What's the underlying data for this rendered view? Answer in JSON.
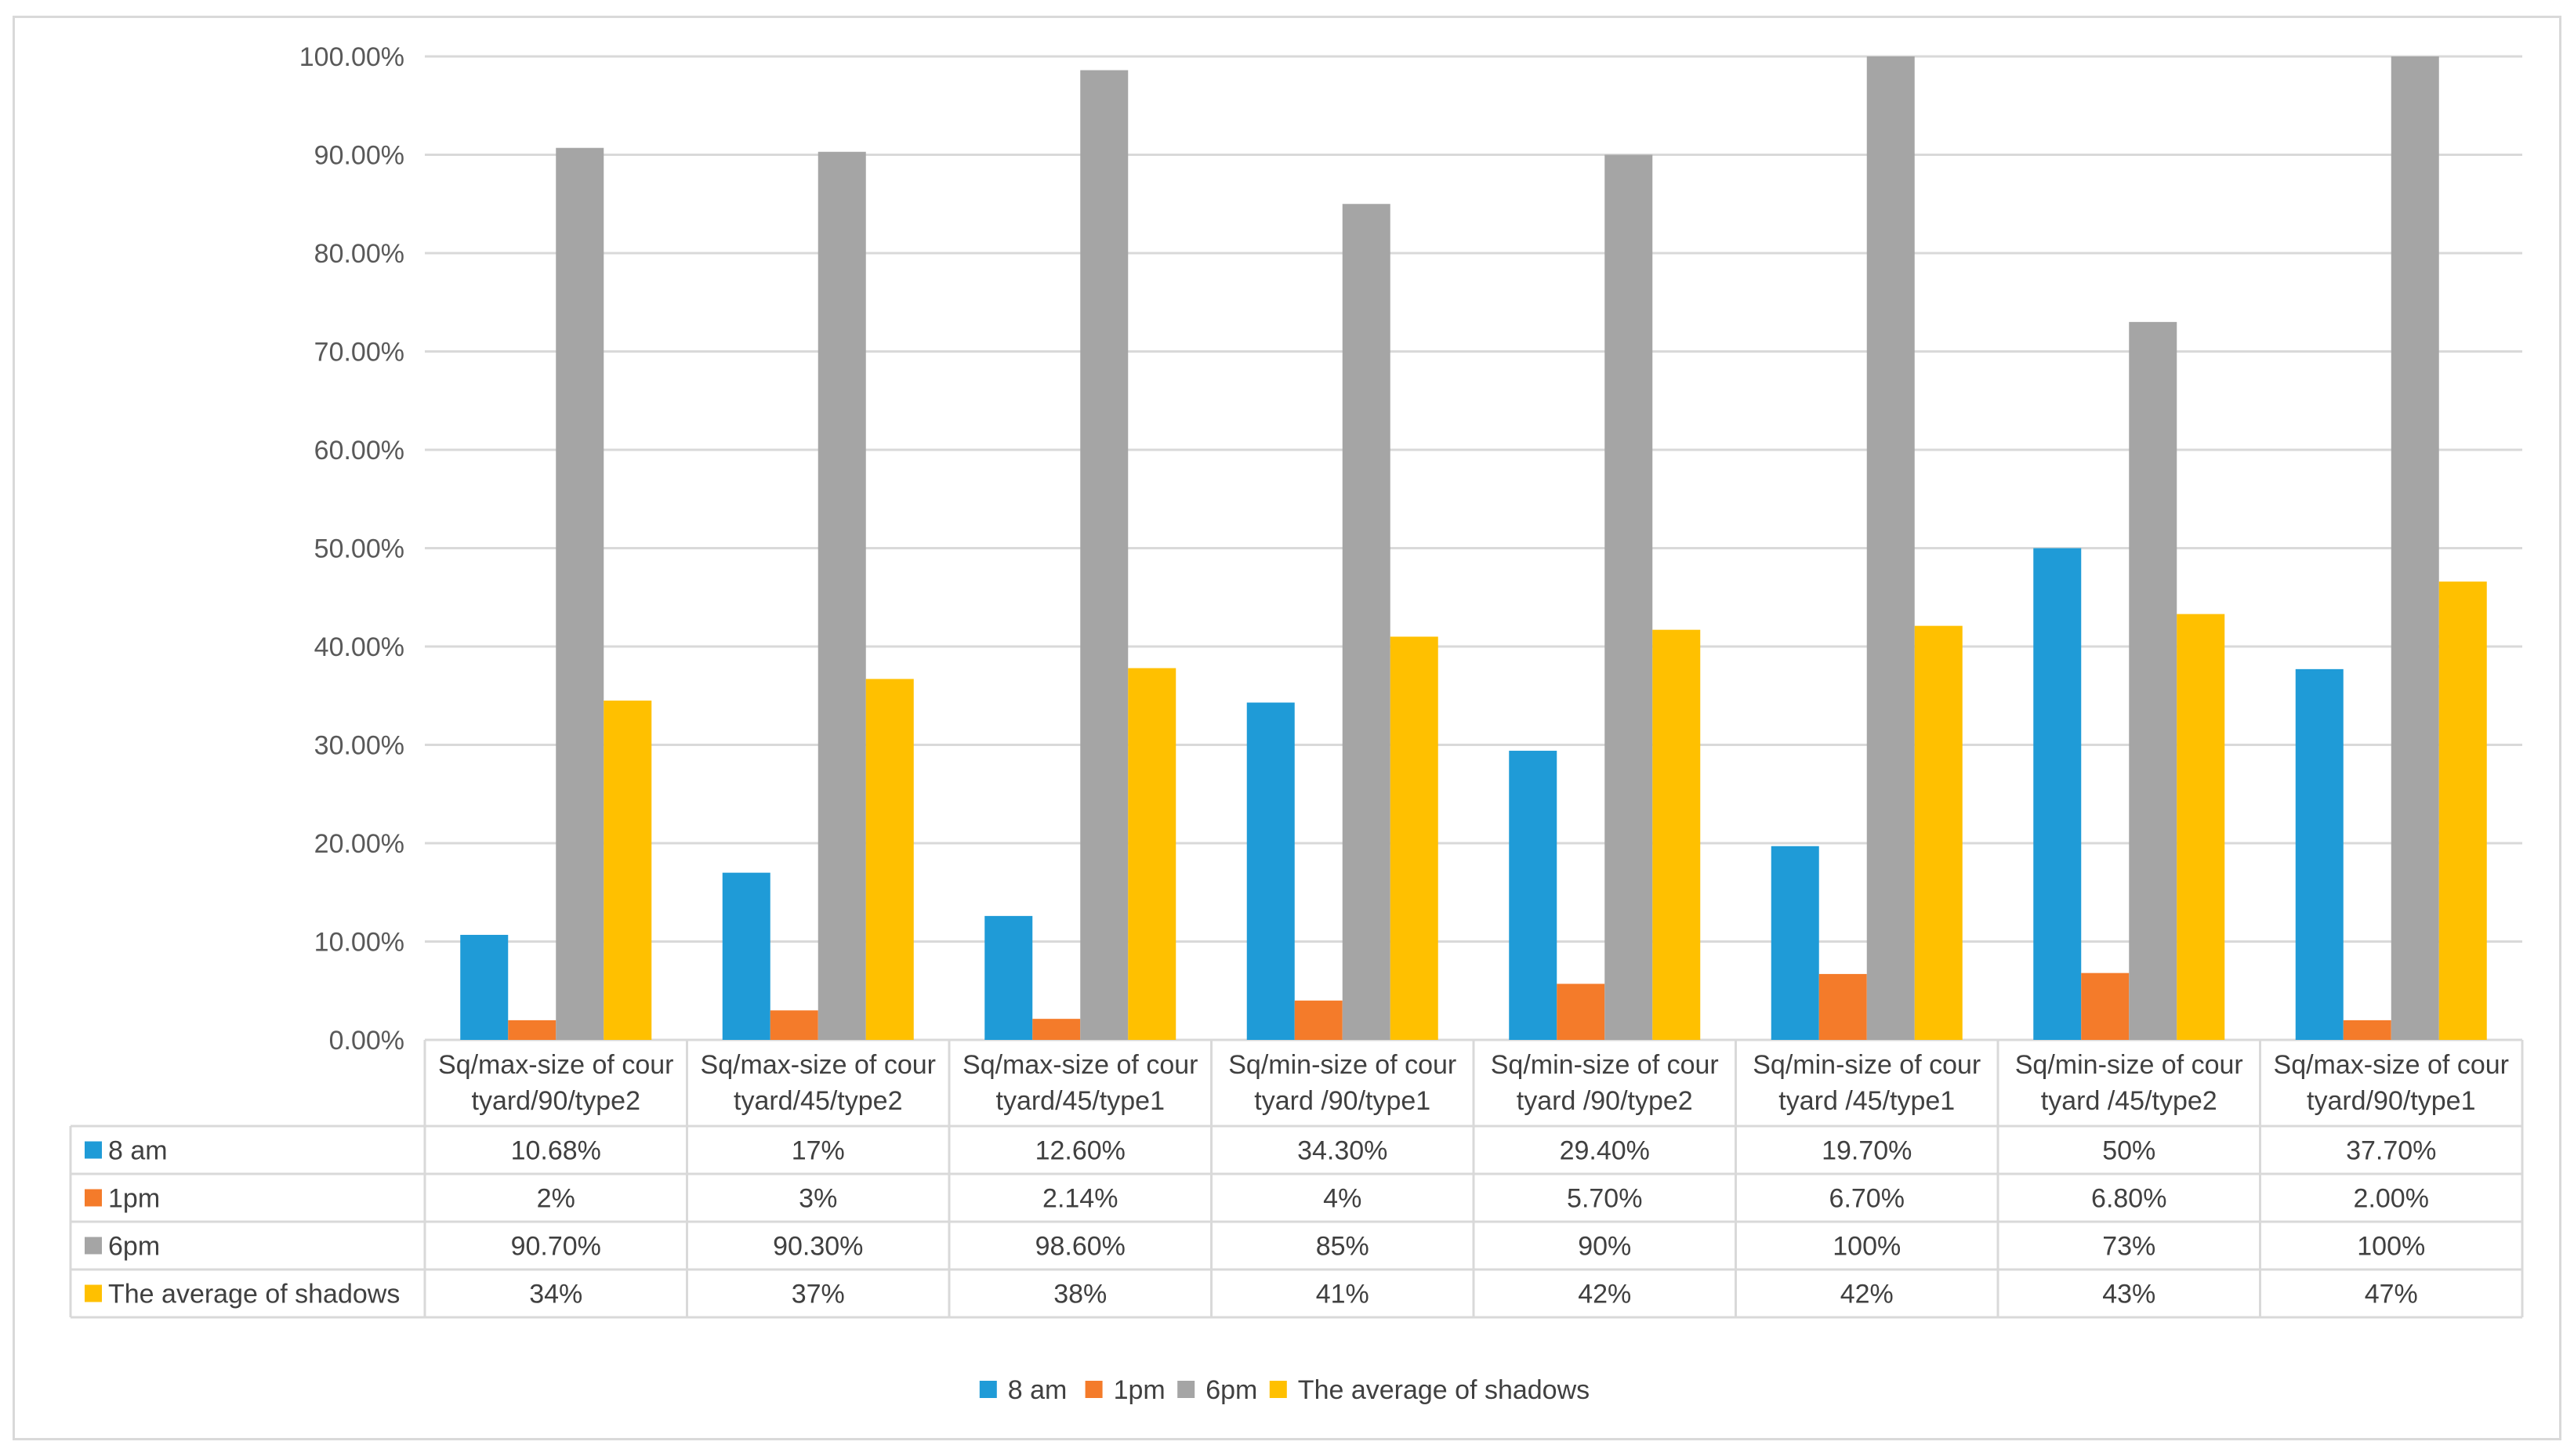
{
  "chart_data": {
    "type": "bar",
    "title": "",
    "xlabel": "",
    "ylabel": "",
    "ylim": [
      0,
      100
    ],
    "yticks": [
      "0.00%",
      "10.00%",
      "20.00%",
      "30.00%",
      "40.00%",
      "50.00%",
      "60.00%",
      "70.00%",
      "80.00%",
      "90.00%",
      "100.00%"
    ],
    "grid": true,
    "legend_position": "bottom-center",
    "categories": [
      [
        "Sq/max-size of cour",
        "tyard/90/type2"
      ],
      [
        "Sq/max-size of cour",
        "tyard/45/type2"
      ],
      [
        "Sq/max-size of cour",
        "tyard/45/type1"
      ],
      [
        "Sq/min-size of cour",
        "tyard /90/type1"
      ],
      [
        "Sq/min-size of cour",
        "tyard /90/type2"
      ],
      [
        "Sq/min-size of cour",
        "tyard /45/type1"
      ],
      [
        "Sq/min-size of cour",
        "tyard /45/type2"
      ],
      [
        "Sq/max-size of cour",
        "tyard/90/type1"
      ]
    ],
    "series": [
      {
        "name": "8 am",
        "color": "#1f9bd7",
        "values": [
          10.68,
          17,
          12.6,
          34.3,
          29.4,
          19.7,
          50,
          37.7
        ],
        "labels": [
          "10.68%",
          "17%",
          "12.60%",
          "34.30%",
          "29.40%",
          "19.70%",
          "50%",
          "37.70%"
        ]
      },
      {
        "name": "1pm",
        "color": "#f47b2a",
        "values": [
          2,
          3,
          2.14,
          4,
          5.7,
          6.7,
          6.8,
          2.0
        ],
        "labels": [
          "2%",
          "3%",
          "2.14%",
          "4%",
          "5.70%",
          "6.70%",
          "6.80%",
          "2.00%"
        ]
      },
      {
        "name": "6pm",
        "color": "#a5a5a5",
        "values": [
          90.7,
          90.3,
          98.6,
          85,
          90,
          100,
          73,
          100
        ],
        "labels": [
          "90.70%",
          "90.30%",
          "98.60%",
          "85%",
          "90%",
          "100%",
          "73%",
          "100%"
        ]
      },
      {
        "name": "The average of shadows",
        "color": "#ffc000",
        "values": [
          34.5,
          36.7,
          37.8,
          41.0,
          41.7,
          42.1,
          43.3,
          46.6
        ],
        "labels": [
          "34%",
          "37%",
          "38%",
          "41%",
          "42%",
          "42%",
          "43%",
          "47%"
        ]
      }
    ]
  }
}
